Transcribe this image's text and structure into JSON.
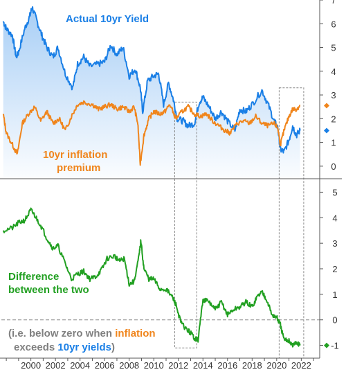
{
  "colors": {
    "yield": "#1a7fe6",
    "inflation": "#f0851c",
    "difference": "#22a022",
    "note": "#808080",
    "axis": "#555555",
    "zero_line": "#888888",
    "box": "#888888"
  },
  "labels": {
    "yield": "Actual 10yr Yield",
    "inflation_line1": "10yr inflation",
    "inflation_line2": "premium",
    "difference_line1": "Difference",
    "difference_line2": "between the two",
    "note_a": "(i.e. below zero when ",
    "note_b": "inflation",
    "note_c": "exceeds ",
    "note_d": "10yr yields",
    "note_e": ")"
  },
  "chart_data": [
    {
      "type": "line",
      "panel": "top",
      "title": "",
      "xlim": [
        1997.6,
        2023.5
      ],
      "ylim": [
        -0.5,
        7
      ],
      "y_ticks": [
        0,
        1,
        2,
        3,
        4,
        5,
        6,
        7
      ],
      "series": [
        {
          "name": "Actual 10yr Yield",
          "area_fill": true,
          "x": [
            1997.75,
            1998.0,
            1998.5,
            1998.8,
            1999.0,
            1999.5,
            1999.9,
            2000.1,
            2000.5,
            2000.9,
            2001.3,
            2001.8,
            2002.2,
            2002.8,
            2003.4,
            2003.8,
            2004.3,
            2004.8,
            2005.5,
            2006.0,
            2006.5,
            2007.0,
            2007.5,
            2008.0,
            2008.5,
            2008.9,
            2009.1,
            2009.5,
            2010.0,
            2010.4,
            2010.8,
            2011.2,
            2011.6,
            2011.9,
            2012.4,
            2012.8,
            2013.3,
            2013.7,
            2014.0,
            2014.5,
            2015.0,
            2015.5,
            2016.0,
            2016.6,
            2017.0,
            2017.5,
            2018.0,
            2018.8,
            2019.3,
            2019.8,
            2020.1,
            2020.3,
            2020.6,
            2021.0,
            2021.3,
            2021.6,
            2021.9
          ],
          "y": [
            6.1,
            5.8,
            5.5,
            4.6,
            4.8,
            5.8,
            6.3,
            6.7,
            6.1,
            5.5,
            5.0,
            4.6,
            5.0,
            3.9,
            3.3,
            4.3,
            4.6,
            4.2,
            4.3,
            4.4,
            5.1,
            4.7,
            5.0,
            3.8,
            4.1,
            3.3,
            2.3,
            3.6,
            3.8,
            3.9,
            2.6,
            3.5,
            2.8,
            2.0,
            1.9,
            1.7,
            1.8,
            2.7,
            2.9,
            2.5,
            2.0,
            2.3,
            1.9,
            1.5,
            2.4,
            2.3,
            2.6,
            3.2,
            2.6,
            1.9,
            1.6,
            0.7,
            0.6,
            1.1,
            1.7,
            1.3,
            1.5
          ]
        },
        {
          "name": "10yr inflation premium",
          "x": [
            1997.75,
            1998.0,
            1998.5,
            1998.9,
            1999.3,
            1999.8,
            2000.3,
            2000.8,
            2001.3,
            2001.8,
            2002.3,
            2002.8,
            2003.3,
            2003.8,
            2004.3,
            2005.0,
            2005.5,
            2006.0,
            2006.5,
            2007.0,
            2007.5,
            2008.0,
            2008.4,
            2008.7,
            2008.9,
            2009.2,
            2009.6,
            2010.0,
            2010.5,
            2010.9,
            2011.3,
            2011.8,
            2012.3,
            2012.8,
            2013.3,
            2013.8,
            2014.3,
            2014.8,
            2015.3,
            2015.8,
            2016.2,
            2016.8,
            2017.3,
            2017.8,
            2018.3,
            2018.8,
            2019.3,
            2019.8,
            2020.1,
            2020.3,
            2020.6,
            2021.0,
            2021.3,
            2021.6,
            2021.9
          ],
          "y": [
            2.2,
            1.4,
            0.9,
            0.5,
            1.8,
            2.2,
            2.5,
            1.9,
            2.3,
            1.8,
            2.0,
            1.5,
            2.1,
            2.6,
            2.7,
            2.6,
            2.4,
            2.5,
            2.6,
            2.4,
            2.5,
            2.3,
            2.5,
            1.8,
            0.1,
            1.3,
            2.0,
            2.3,
            2.2,
            2.3,
            2.6,
            2.0,
            2.3,
            2.5,
            2.2,
            2.1,
            2.2,
            1.9,
            1.7,
            1.5,
            1.4,
            1.8,
            1.9,
            1.8,
            2.1,
            1.8,
            1.7,
            1.8,
            1.6,
            0.9,
            1.5,
            2.1,
            2.4,
            2.4,
            2.55
          ]
        }
      ]
    },
    {
      "type": "line",
      "panel": "bottom",
      "title": "",
      "xlim": [
        1997.6,
        2023.5
      ],
      "ylim": [
        -1.5,
        5.5
      ],
      "y_ticks": [
        -1,
        0,
        1,
        2,
        3,
        4,
        5
      ],
      "zero_line": true,
      "series": [
        {
          "name": "Difference between the two",
          "x": [
            1997.75,
            1998.5,
            1999.0,
            1999.5,
            2000.0,
            2000.3,
            2000.8,
            2001.3,
            2001.8,
            2002.2,
            2002.8,
            2003.3,
            2003.8,
            2004.3,
            2004.8,
            2005.3,
            2005.8,
            2006.2,
            2006.8,
            2007.2,
            2007.6,
            2008.0,
            2008.4,
            2008.8,
            2008.95,
            2009.2,
            2009.6,
            2010.0,
            2010.5,
            2011.0,
            2011.5,
            2011.8,
            2012.2,
            2012.7,
            2013.0,
            2013.3,
            2013.6,
            2014.0,
            2014.5,
            2015.0,
            2015.5,
            2016.0,
            2016.5,
            2017.0,
            2017.5,
            2018.0,
            2018.4,
            2018.8,
            2019.2,
            2019.6,
            2020.0,
            2020.3,
            2020.6,
            2021.0,
            2021.3,
            2021.6,
            2021.9
          ],
          "y": [
            3.5,
            3.6,
            3.8,
            3.9,
            4.3,
            4.1,
            3.7,
            3.2,
            2.8,
            2.9,
            2.2,
            1.6,
            1.8,
            1.9,
            1.6,
            1.7,
            2.0,
            2.4,
            2.5,
            2.3,
            2.4,
            1.4,
            1.5,
            2.5,
            3.1,
            2.0,
            1.6,
            1.6,
            1.2,
            1.2,
            0.9,
            0.6,
            -0.1,
            -0.4,
            -0.5,
            -0.7,
            -0.8,
            0.8,
            0.7,
            0.4,
            0.7,
            0.2,
            0.4,
            0.5,
            0.7,
            0.5,
            0.9,
            1.1,
            0.8,
            0.2,
            0.1,
            -0.2,
            -0.8,
            -0.8,
            -1.0,
            -0.9,
            -1.0
          ]
        }
      ]
    }
  ],
  "x_axis": {
    "tick_labels": [
      "2000",
      "2002",
      "2004",
      "2006",
      "2008",
      "2010",
      "2012",
      "2014",
      "2016",
      "2018",
      "2020",
      "2022"
    ],
    "tick_values": [
      2000,
      2002,
      2004,
      2006,
      2008,
      2010,
      2012,
      2014,
      2016,
      2018,
      2020,
      2022
    ]
  },
  "highlight_boxes": [
    {
      "x_start": 2011.7,
      "x_end": 2013.5,
      "top_panel_y_top": 2.7,
      "bottom_panel_y_bottom": -1.1
    },
    {
      "x_start": 2020.2,
      "x_end": 2022.2,
      "top_panel_y_top": 3.3,
      "bottom_panel_y_bottom": -1.5
    }
  ],
  "end_markers": [
    {
      "series": "Actual 10yr Yield",
      "panel": "top",
      "value": 1.5
    },
    {
      "series": "10yr inflation premium",
      "panel": "top",
      "value": 2.55
    },
    {
      "series": "Difference between the two",
      "panel": "bottom",
      "value": -1.0
    }
  ]
}
